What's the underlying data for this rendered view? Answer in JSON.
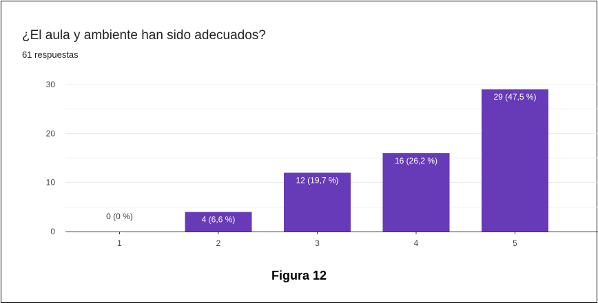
{
  "caption": "Figura 12",
  "chart_data": {
    "type": "bar",
    "title": "¿El aula y ambiente han sido adecuados?",
    "subtitle": "61 respuestas",
    "categories": [
      "1",
      "2",
      "3",
      "4",
      "5"
    ],
    "values": [
      0,
      4,
      12,
      16,
      29
    ],
    "data_labels": [
      "0 (0 %)",
      "4 (6,6 %)",
      "12 (19,7 %)",
      "16 (26,2 %)",
      "29 (47,5 %)"
    ],
    "ylim": [
      0,
      30
    ],
    "yticks": [
      0,
      10,
      20,
      30
    ],
    "grid": true,
    "colors": {
      "bar": "#673ab7",
      "grid": "#e8e8e8",
      "axis": "#333333"
    }
  }
}
